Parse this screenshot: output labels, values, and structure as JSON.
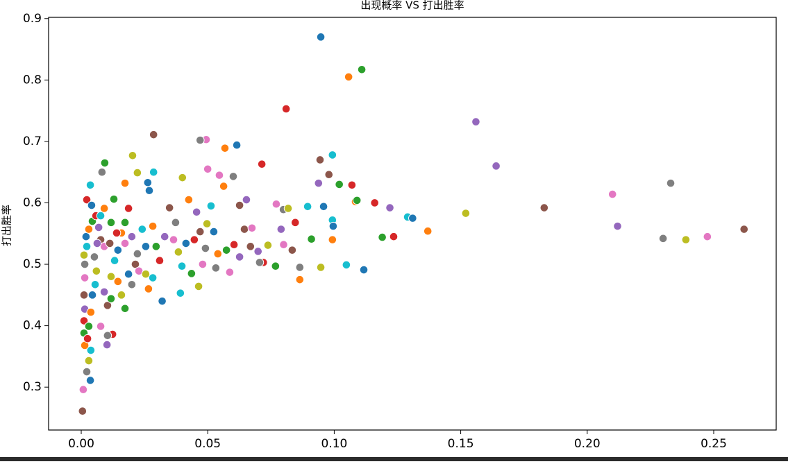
{
  "chart_data": {
    "type": "scatter",
    "title": "出现概率 VS 打出胜率",
    "y_label": "打出胜率",
    "palette": [
      "#1f77b4",
      "#ff7f0e",
      "#2ca02c",
      "#d62728",
      "#9467bd",
      "#8c564b",
      "#e377c2",
      "#7f7f7f",
      "#bcbd22",
      "#17becf"
    ],
    "x": [
      0.0947,
      0.1057,
      0.1109,
      0.081,
      0.156,
      0.0286,
      0.0494,
      0.047,
      0.0203,
      0.0993,
      0.0615,
      0.0568,
      0.0093,
      0.0714,
      0.164,
      0.0944,
      0.05,
      0.0082,
      0.0222,
      0.0036,
      0.0263,
      0.0563,
      0.102,
      0.107,
      0.0938,
      0.0979,
      0.0546,
      0.0601,
      0.04,
      0.0286,
      0.0269,
      0.0173,
      0.0129,
      0.0022,
      0.0653,
      0.0626,
      0.0771,
      0.0799,
      0.0818,
      0.0895,
      0.0958,
      0.1084,
      0.109,
      0.116,
      0.122,
      0.183,
      0.21,
      0.233,
      0.152,
      0.129,
      0.131,
      0.137,
      0.119,
      0.1235,
      0.212,
      0.262,
      0.2475,
      0.23,
      0.239,
      0.0993,
      0.0996,
      0.0993,
      0.091,
      0.0846,
      0.079,
      0.0834,
      0.08,
      0.0864,
      0.0947,
      0.1048,
      0.1117,
      0.0864,
      0.0768,
      0.072,
      0.0699,
      0.0669,
      0.0587,
      0.0532,
      0.0464,
      0.0392,
      0.032,
      0.0266,
      0.0173,
      0.0124,
      0.0102,
      0.0005,
      0.0008,
      0.0022,
      0.003,
      0.0038,
      0.0036,
      0.0014,
      0.0011,
      0.0011,
      0.0014,
      0.0011,
      0.0014,
      0.0014,
      0.0011,
      0.0022,
      0.0019,
      0.003,
      0.0044,
      0.0058,
      0.0069,
      0.0077,
      0.0091,
      0.0052,
      0.006,
      0.0055,
      0.0044,
      0.0038,
      0.003,
      0.0025,
      0.0091,
      0.0104,
      0.0077,
      0.0104,
      0.0118,
      0.0132,
      0.0145,
      0.0159,
      0.0173,
      0.0187,
      0.02,
      0.0214,
      0.0228,
      0.02,
      0.0159,
      0.0241,
      0.0255,
      0.0283,
      0.0296,
      0.031,
      0.033,
      0.0349,
      0.0365,
      0.0373,
      0.0384,
      0.0398,
      0.0414,
      0.0425,
      0.0436,
      0.0447,
      0.0456,
      0.047,
      0.048,
      0.0491,
      0.0497,
      0.0513,
      0.0524,
      0.054,
      0.0574,
      0.0604,
      0.0626,
      0.0645,
      0.0675,
      0.0705,
      0.0738,
      0.0077,
      0.0041,
      0.0091,
      0.0118,
      0.014,
      0.0063,
      0.0113,
      0.0173,
      0.0222,
      0.0255,
      0.0283,
      0.0187,
      0.0145,
      0.0118
    ],
    "y": [
      0.87,
      0.805,
      0.817,
      0.753,
      0.732,
      0.711,
      0.703,
      0.702,
      0.677,
      0.678,
      0.694,
      0.689,
      0.665,
      0.663,
      0.66,
      0.67,
      0.655,
      0.65,
      0.649,
      0.629,
      0.633,
      0.627,
      0.63,
      0.629,
      0.632,
      0.646,
      0.645,
      0.643,
      0.641,
      0.65,
      0.62,
      0.632,
      0.606,
      0.605,
      0.605,
      0.596,
      0.598,
      0.589,
      0.591,
      0.594,
      0.594,
      0.602,
      0.604,
      0.6,
      0.592,
      0.592,
      0.614,
      0.632,
      0.583,
      0.577,
      0.575,
      0.554,
      0.544,
      0.545,
      0.562,
      0.557,
      0.545,
      0.542,
      0.54,
      0.572,
      0.562,
      0.54,
      0.541,
      0.568,
      0.557,
      0.523,
      0.532,
      0.495,
      0.495,
      0.499,
      0.491,
      0.475,
      0.497,
      0.503,
      0.521,
      0.529,
      0.487,
      0.494,
      0.464,
      0.453,
      0.44,
      0.46,
      0.428,
      0.386,
      0.369,
      0.261,
      0.296,
      0.325,
      0.343,
      0.36,
      0.311,
      0.368,
      0.388,
      0.408,
      0.427,
      0.45,
      0.478,
      0.5,
      0.515,
      0.529,
      0.545,
      0.557,
      0.57,
      0.579,
      0.56,
      0.54,
      0.529,
      0.512,
      0.489,
      0.467,
      0.45,
      0.422,
      0.399,
      0.379,
      0.455,
      0.433,
      0.399,
      0.384,
      0.48,
      0.506,
      0.523,
      0.551,
      0.568,
      0.591,
      0.545,
      0.5,
      0.489,
      0.467,
      0.45,
      0.557,
      0.529,
      0.562,
      0.529,
      0.506,
      0.545,
      0.592,
      0.54,
      0.568,
      0.52,
      0.497,
      0.534,
      0.605,
      0.485,
      0.54,
      0.585,
      0.553,
      0.5,
      0.526,
      0.566,
      0.595,
      0.553,
      0.517,
      0.523,
      0.532,
      0.512,
      0.557,
      0.559,
      0.503,
      0.531,
      0.579,
      0.596,
      0.591,
      0.568,
      0.551,
      0.534,
      0.534,
      0.534,
      0.517,
      0.484,
      0.478,
      0.484,
      0.472,
      0.444
    ],
    "xlim": [
      -0.0129,
      0.2747
    ],
    "ylim": [
      0.2302,
      0.902
    ],
    "xticks": [
      {
        "value": 0,
        "label": "0.00"
      },
      {
        "value": 0.05,
        "label": "0.05"
      },
      {
        "value": 0.1,
        "label": "0.10"
      },
      {
        "value": 0.15,
        "label": "0.15"
      },
      {
        "value": 0.2,
        "label": "0.20"
      },
      {
        "value": 0.25,
        "label": "0.25"
      }
    ],
    "yticks": [
      0.3,
      0.4,
      0.5,
      0.6,
      0.7,
      0.8,
      0.9
    ]
  }
}
